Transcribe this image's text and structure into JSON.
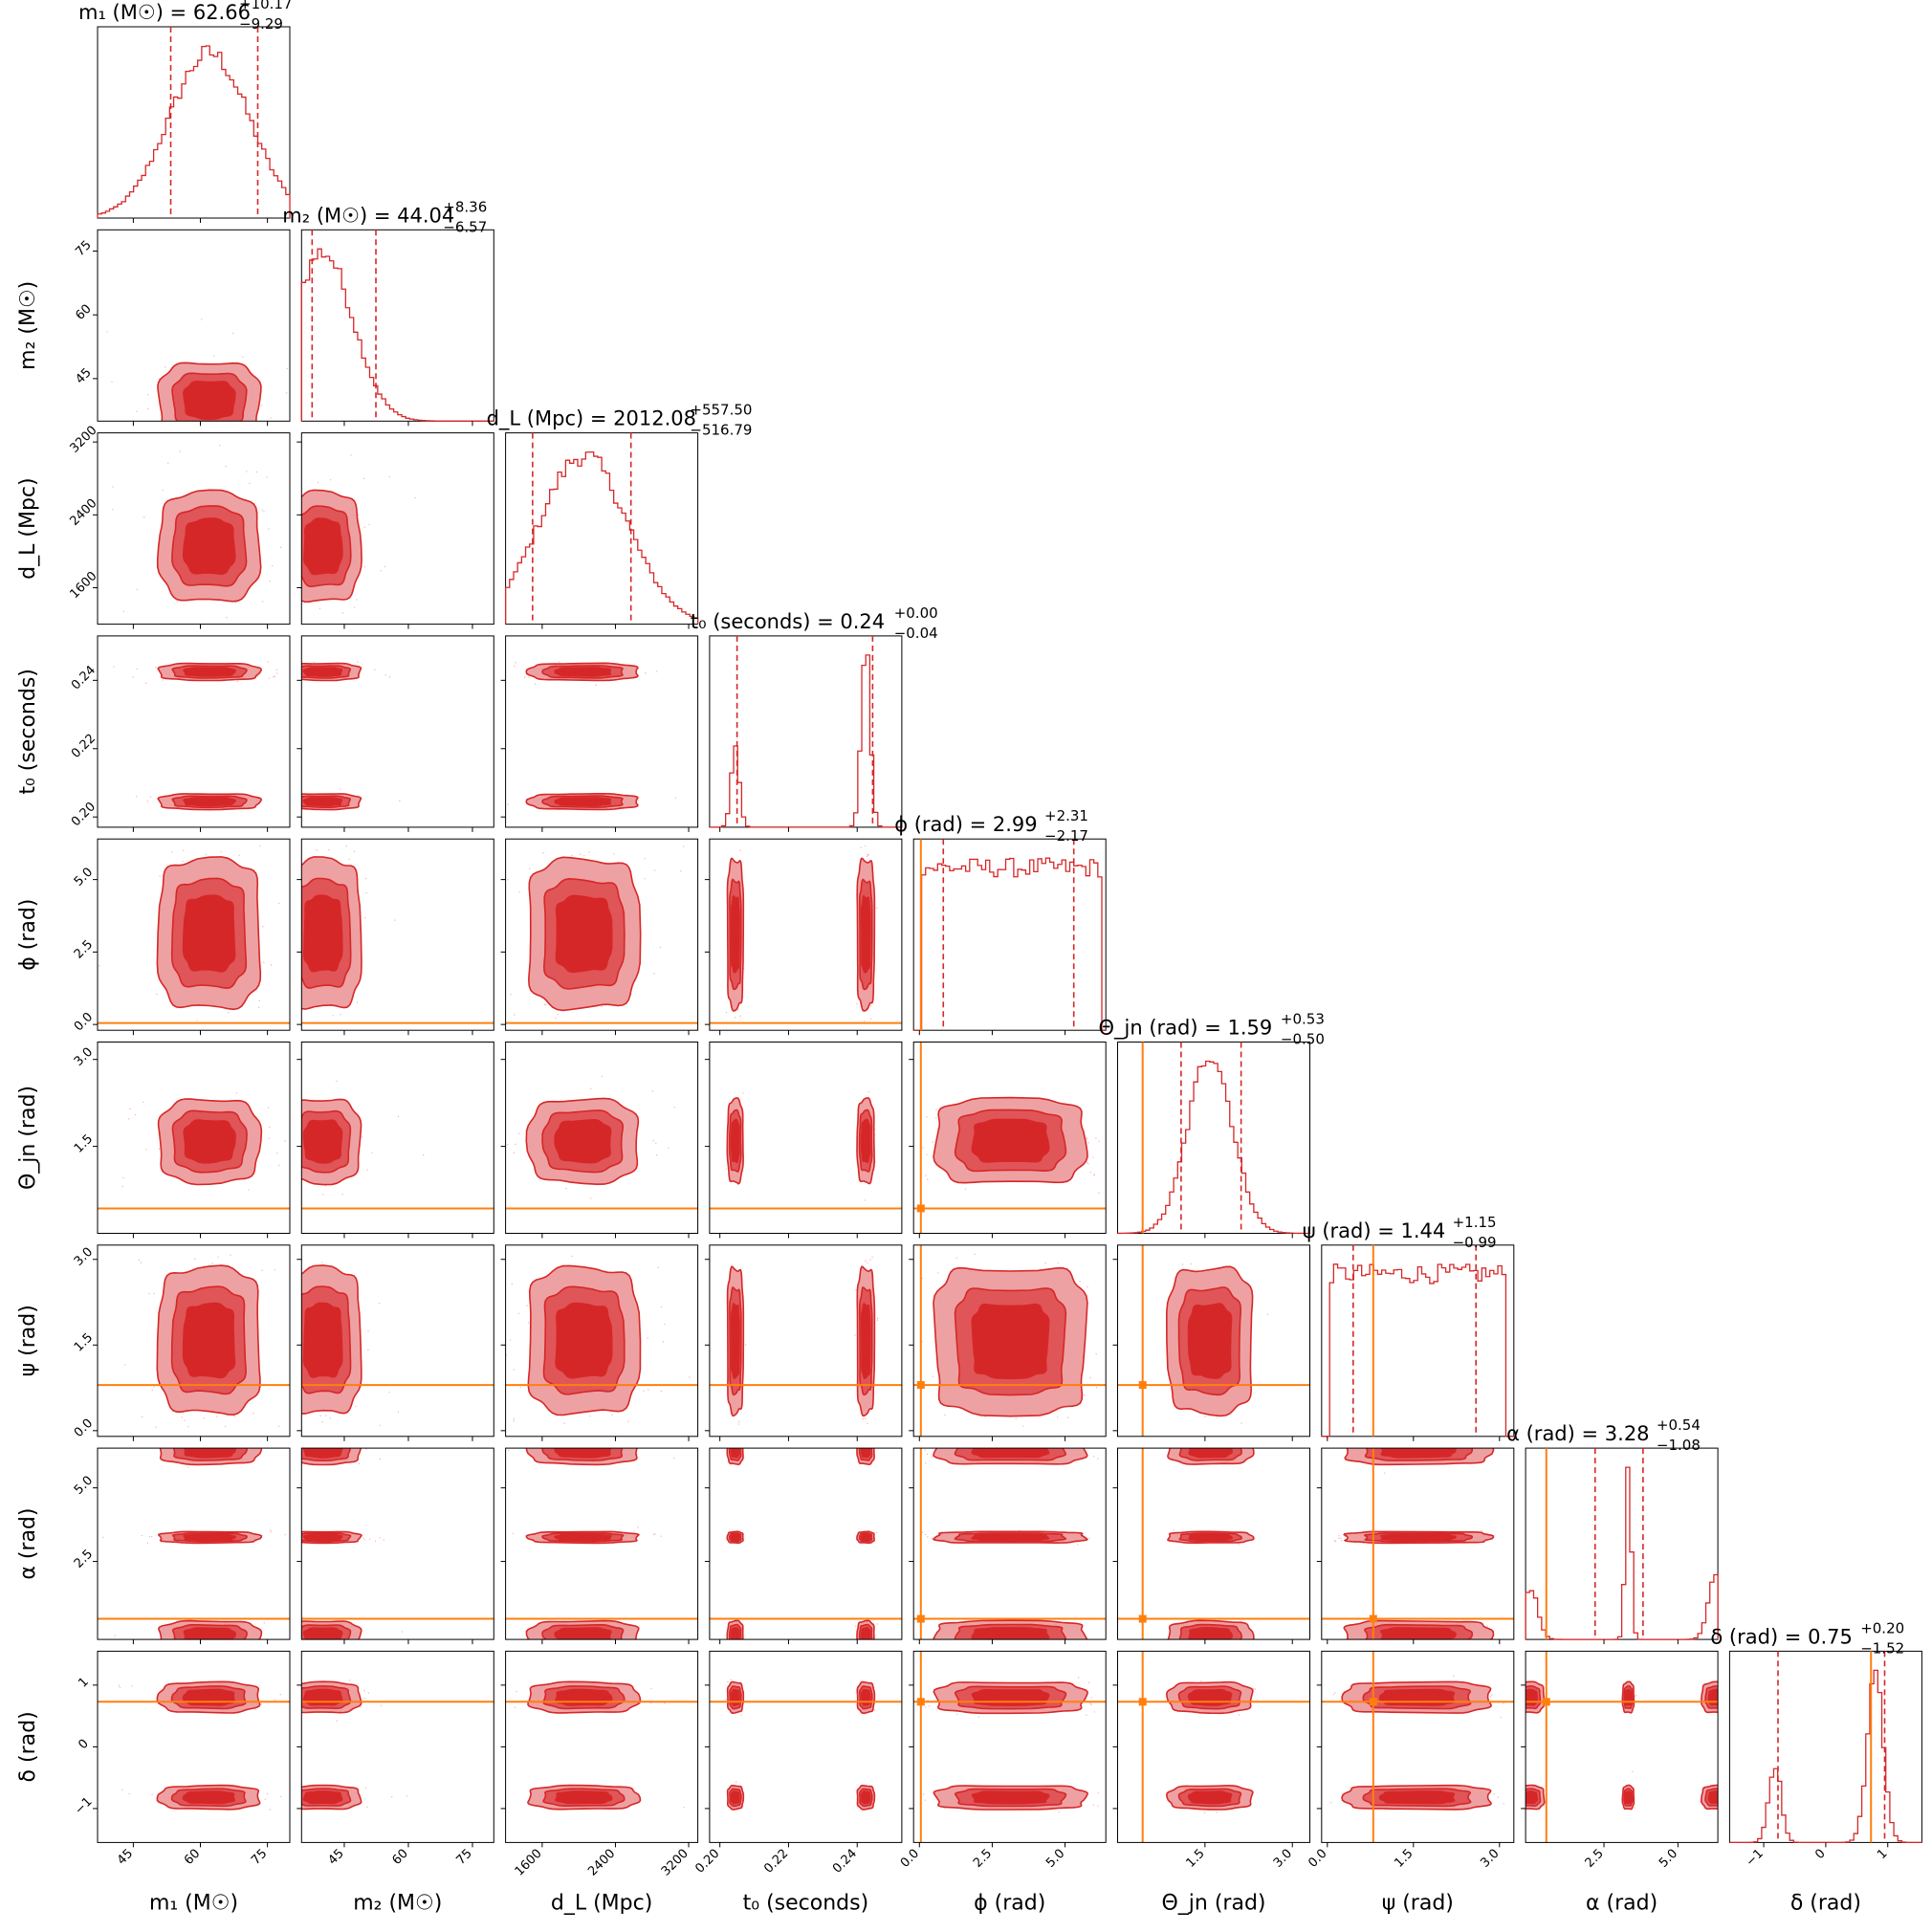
{
  "chart_data": {
    "type": "corner",
    "colors": {
      "posterior": "#d62728",
      "contour_light": "#eea1a2",
      "contour_mid": "#e05558",
      "contour_dark": "#d62728",
      "injection": "#ff7f0e",
      "scatter": "#f2b3b4"
    },
    "parameters": [
      {
        "key": "m1",
        "label": "m₁ (M☉)",
        "title": "m₁ (M☉) = 62.66",
        "median": 62.66,
        "plus": "+10.17",
        "minus": "−9.29",
        "range": [
          37,
          80
        ],
        "ticks": [
          45,
          60,
          75
        ],
        "tick_labels": [
          "45",
          "60",
          "75"
        ],
        "quantiles": [
          53.37,
          72.83
        ],
        "injection": null
      },
      {
        "key": "m2",
        "label": "m₂ (M☉)",
        "title": "m₂ (M☉) = 44.04",
        "median": 44.04,
        "plus": "+8.36",
        "minus": "−6.57",
        "range": [
          35,
          80
        ],
        "ticks": [
          45,
          60,
          75
        ],
        "tick_labels": [
          "45",
          "60",
          "75"
        ],
        "quantiles": [
          37.47,
          52.4
        ],
        "injection": null
      },
      {
        "key": "dL",
        "label": "d_L (Mpc)",
        "title": "d_L (Mpc) = 2012.08",
        "median": 2012.08,
        "plus": "+557.50",
        "minus": "−516.79",
        "range": [
          1200,
          3300
        ],
        "ticks": [
          1600,
          2400,
          3200
        ],
        "tick_labels": [
          "1600",
          "2400",
          "3200"
        ],
        "quantiles": [
          1495.29,
          2569.58
        ],
        "injection": null
      },
      {
        "key": "t0",
        "label": "t₀ (seconds)",
        "title": "t₀ (seconds) = 0.24",
        "median": 0.24,
        "plus": "+0.00",
        "minus": "−0.04",
        "range": [
          0.197,
          0.253
        ],
        "ticks": [
          0.2,
          0.22,
          0.24
        ],
        "tick_labels": [
          "0.20",
          "0.22",
          "0.24"
        ],
        "quantiles": [
          0.205,
          0.2445
        ],
        "injection": null
      },
      {
        "key": "phi",
        "label": "ϕ (rad)",
        "title": "ϕ (rad) = 2.99",
        "median": 2.99,
        "plus": "+2.31",
        "minus": "−2.17",
        "range": [
          -0.2,
          6.4
        ],
        "ticks": [
          0.0,
          2.5,
          5.0
        ],
        "tick_labels": [
          "0.0",
          "2.5",
          "5.0"
        ],
        "quantiles": [
          0.82,
          5.3
        ],
        "injection": 0.05
      },
      {
        "key": "theta",
        "label": "Θ_jn (rad)",
        "title": "Θ_jn (rad) = 1.59",
        "median": 1.59,
        "plus": "+0.53",
        "minus": "−0.50",
        "range": [
          0.0,
          3.3
        ],
        "ticks": [
          1.5,
          3.0
        ],
        "tick_labels": [
          "1.5",
          "3.0"
        ],
        "quantiles": [
          1.09,
          2.12
        ],
        "injection": 0.43
      },
      {
        "key": "psi",
        "label": "ψ (rad)",
        "title": "ψ (rad) = 1.44",
        "median": 1.44,
        "plus": "+1.15",
        "minus": "−0.99",
        "range": [
          -0.1,
          3.25
        ],
        "ticks": [
          0.0,
          1.5,
          3.0
        ],
        "tick_labels": [
          "0.0",
          "1.5",
          "3.0"
        ],
        "quantiles": [
          0.45,
          2.59
        ],
        "injection": 0.8
      },
      {
        "key": "alpha",
        "label": "α (rad)",
        "title": "α (rad) = 3.28",
        "median": 3.28,
        "plus": "+0.54",
        "minus": "−1.08",
        "range": [
          -0.15,
          6.35
        ],
        "ticks": [
          2.5,
          5.0
        ],
        "tick_labels": [
          "2.5",
          "5.0"
        ],
        "quantiles": [
          2.2,
          3.82
        ],
        "injection": 0.55
      },
      {
        "key": "delta",
        "label": "δ (rad)",
        "title": "δ (rad) = 0.75",
        "median": 0.75,
        "plus": "+0.20",
        "minus": "−1.52",
        "range": [
          -1.55,
          1.55
        ],
        "ticks": [
          -1,
          0,
          1
        ],
        "tick_labels": [
          "−1",
          "0",
          "1"
        ],
        "quantiles": [
          -0.77,
          0.95
        ],
        "injection": 0.73
      }
    ],
    "distributions": {
      "m1": {
        "kind": "broad",
        "modes": [
          [
            62,
            9
          ]
        ],
        "range": [
          37,
          80
        ]
      },
      "m2": {
        "kind": "broad",
        "modes": [
          [
            40,
            7
          ]
        ],
        "range": [
          35,
          80
        ]
      },
      "dL": {
        "kind": "broad",
        "modes": [
          [
            2050,
            480
          ]
        ],
        "range": [
          1200,
          3300
        ]
      },
      "t0": {
        "kind": "modes",
        "modes": [
          [
            0.2045,
            0.0012,
            0.3
          ],
          [
            0.2425,
            0.0013,
            0.7
          ]
        ]
      },
      "phi": {
        "kind": "uniform",
        "range": [
          0.05,
          6.2
        ]
      },
      "theta": {
        "kind": "modes",
        "modes": [
          [
            1.59,
            0.38,
            1.0
          ]
        ]
      },
      "psi": {
        "kind": "uniform",
        "range": [
          0.05,
          3.1
        ]
      },
      "alpha": {
        "kind": "modes",
        "modes": [
          [
            3.32,
            0.1,
            0.6
          ],
          [
            0.0,
            0.25,
            0.18
          ],
          [
            6.28,
            0.25,
            0.22
          ]
        ]
      },
      "delta": {
        "kind": "modes",
        "modes": [
          [
            0.8,
            0.13,
            0.68
          ],
          [
            -0.82,
            0.1,
            0.32
          ]
        ]
      }
    }
  }
}
